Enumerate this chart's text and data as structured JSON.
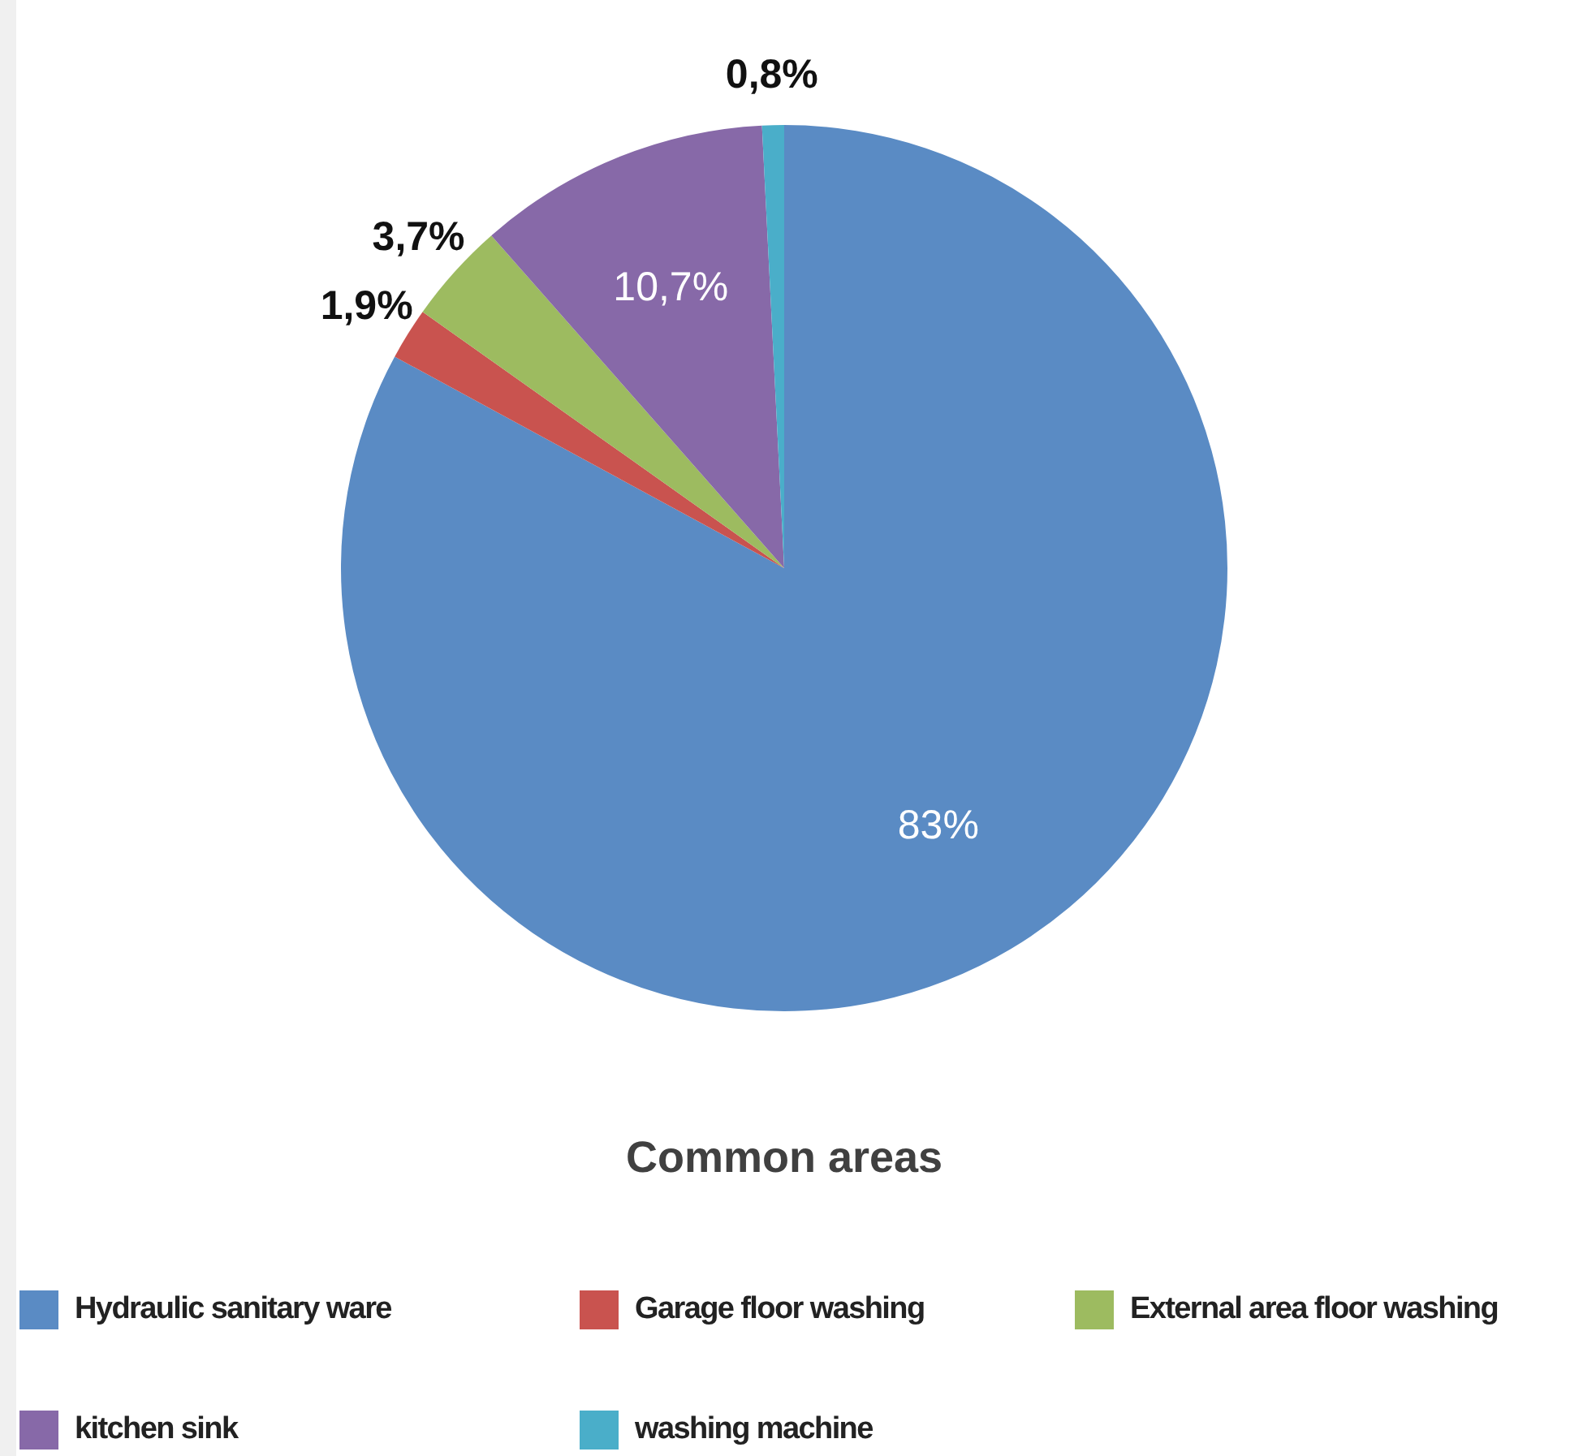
{
  "chart_data": {
    "type": "pie",
    "title": "Common areas",
    "categories": [
      "Hydraulic sanitary ware",
      "Garage floor washing",
      "External area floor washing",
      "kitchen sink",
      "washing machine"
    ],
    "values": [
      83,
      1.9,
      3.7,
      10.7,
      0.8
    ],
    "colors": [
      "#5a8bc4",
      "#c9534f",
      "#9dbb60",
      "#8769a8",
      "#4aaec9"
    ],
    "value_labels": [
      "83%",
      "1,9%",
      "3,7%",
      "10,7%",
      "0,8%"
    ],
    "legend": "bottom"
  }
}
